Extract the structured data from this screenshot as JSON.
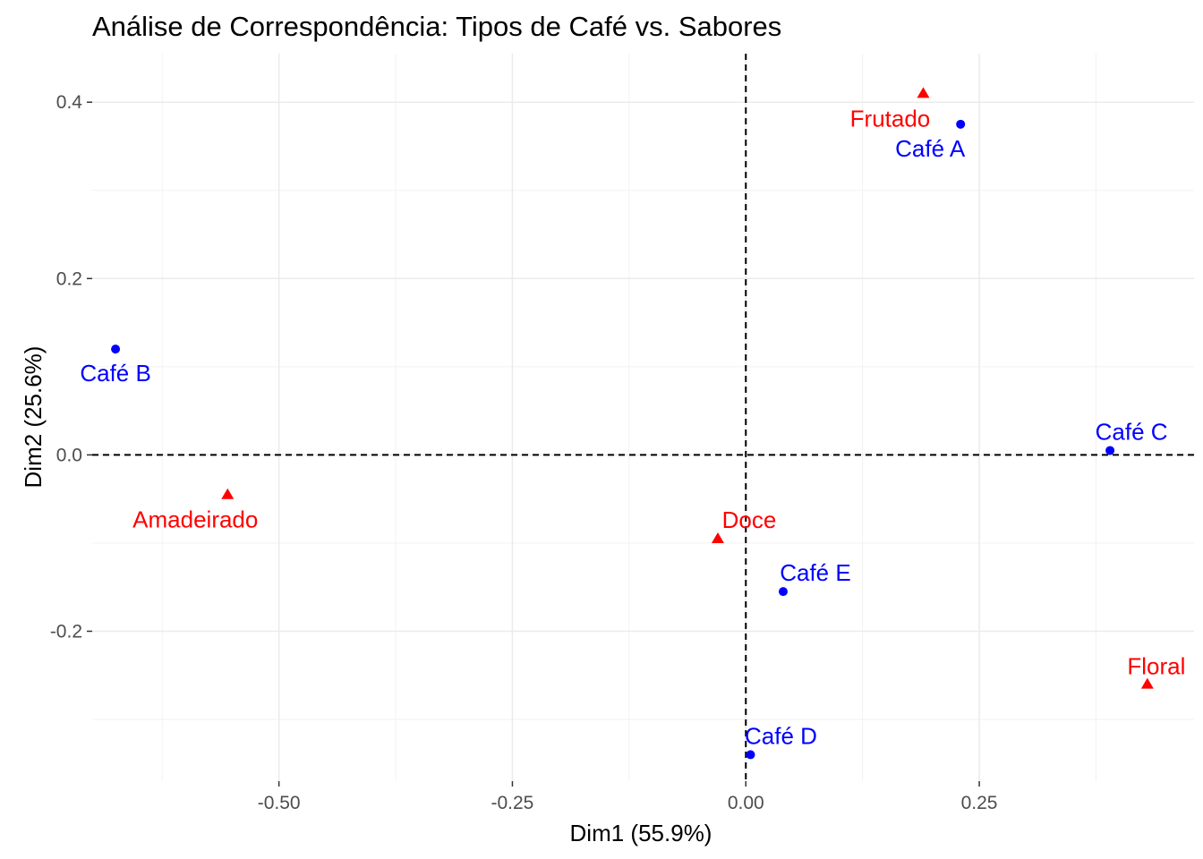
{
  "chart_data": {
    "type": "scatter",
    "title": "Análise de Correspondência: Tipos de Café vs. Sabores",
    "xlabel": "Dim1 (55.9%)",
    "ylabel": "Dim2 (25.6%)",
    "xlim": [
      -0.7,
      0.48
    ],
    "ylim": [
      -0.37,
      0.455
    ],
    "x_ticks": [
      -0.5,
      -0.25,
      0.0,
      0.25
    ],
    "x_tick_labels": [
      "-0.50",
      "-0.25",
      "0.00",
      "0.25"
    ],
    "y_ticks": [
      -0.2,
      0.0,
      0.2,
      0.4
    ],
    "y_tick_labels": [
      "-0.2",
      "0.0",
      "0.2",
      "0.4"
    ],
    "grid": true,
    "reference_lines": {
      "x": 0.0,
      "y": 0.0,
      "style": "dashed"
    },
    "legend": "none",
    "series": [
      {
        "marker": "circle",
        "color": "#0000FF",
        "points": [
          {
            "label": "Café A",
            "x": 0.23,
            "y": 0.375
          },
          {
            "label": "Café B",
            "x": -0.675,
            "y": 0.12
          },
          {
            "label": "Café C",
            "x": 0.39,
            "y": 0.005
          },
          {
            "label": "Café D",
            "x": 0.005,
            "y": -0.34
          },
          {
            "label": "Café E",
            "x": 0.04,
            "y": -0.155
          }
        ]
      },
      {
        "marker": "triangle",
        "color": "#FF0000",
        "points": [
          {
            "label": "Frutado",
            "x": 0.19,
            "y": 0.41
          },
          {
            "label": "Amadeirado",
            "x": -0.555,
            "y": -0.045
          },
          {
            "label": "Doce",
            "x": -0.03,
            "y": -0.095
          },
          {
            "label": "Floral",
            "x": 0.43,
            "y": -0.26
          }
        ]
      }
    ]
  }
}
